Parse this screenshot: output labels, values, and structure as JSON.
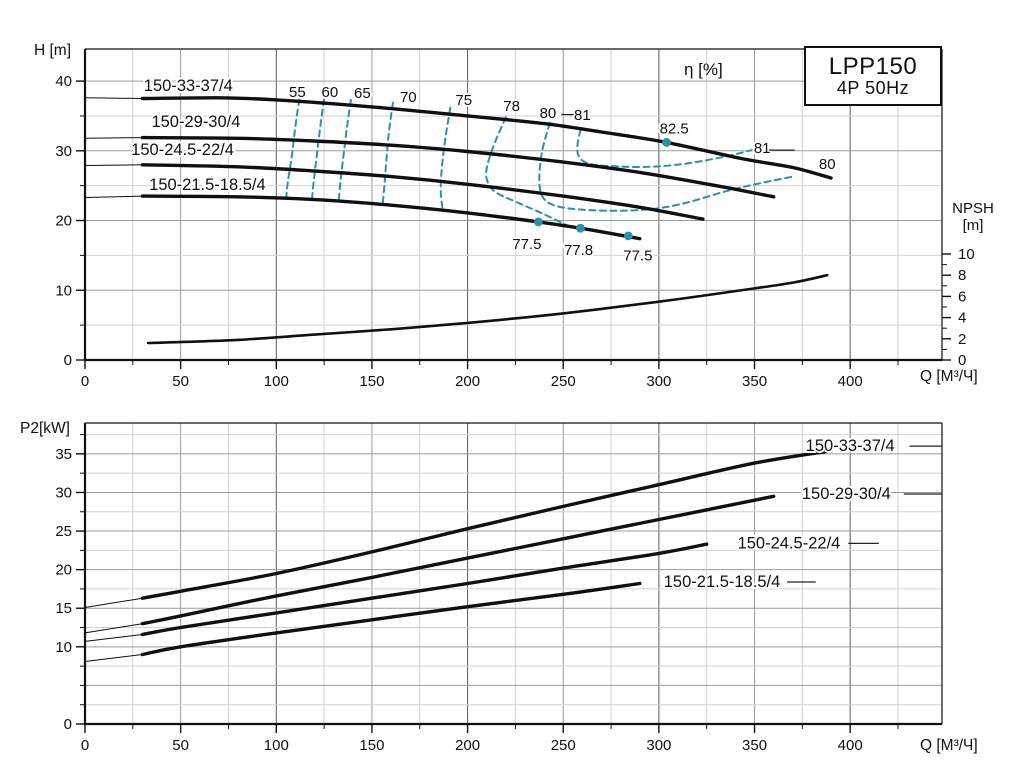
{
  "title_box": {
    "model": "LPP150",
    "spec": "4P 50Hz"
  },
  "colors": {
    "accent_teal": "#2a90ab",
    "curve_black": "#101010",
    "grid_minor": "#d2d2d2",
    "grid_mid": "#9b9b9b",
    "grid_major": "#5c5c5c",
    "axis": "#111111"
  },
  "chart_data": [
    {
      "type": "line",
      "title": "LPP150 4P 50Hz pump H-Q performance curves",
      "xlabel": "Q [M³/Ч]",
      "ylabel": "H [m]",
      "y2label_line1": "NPSH",
      "y2label_line2": "[m]",
      "eta_label": "η [%]",
      "xlim": [
        0,
        448
      ],
      "ylim": [
        0,
        44.6
      ],
      "y2lim": [
        0,
        10
      ],
      "grid": true,
      "x_axis": {
        "labeled_ticks": [
          0,
          50,
          100,
          150,
          200,
          250,
          300,
          350,
          400
        ],
        "minor_step": 25,
        "last_tick": 425
      },
      "y_axis": {
        "labeled_ticks": [
          0,
          10,
          20,
          30,
          40
        ],
        "minor_step": 5,
        "last_tick": 40
      },
      "npsh_axis": {
        "labeled_ticks": [
          0,
          2,
          4,
          6,
          8,
          10
        ],
        "minor_step": 1
      },
      "series": [
        {
          "name": "150-33-37/4",
          "label": "150-33-37/4",
          "label_pos": [
            54,
            39.3
          ],
          "thin_until": 30,
          "points": [
            [
              0,
              37.6
            ],
            [
              30,
              37.5
            ],
            [
              70,
              37.6
            ],
            [
              100,
              37.3
            ],
            [
              150,
              36.3
            ],
            [
              200,
              35.0
            ],
            [
              240,
              33.9
            ],
            [
              270,
              32.7
            ],
            [
              304,
              31.2
            ],
            [
              343,
              28.9
            ],
            [
              370,
              27.6
            ],
            [
              390,
              26.1
            ]
          ]
        },
        {
          "name": "150-29-30/4",
          "label": "150-29-30/4",
          "label_pos": [
            58,
            34.1
          ],
          "thin_until": 30,
          "points": [
            [
              0,
              31.8
            ],
            [
              30,
              31.9
            ],
            [
              80,
              31.8
            ],
            [
              120,
              31.4
            ],
            [
              160,
              30.8
            ],
            [
              200,
              29.9
            ],
            [
              250,
              28.4
            ],
            [
              290,
              26.9
            ],
            [
              330,
              25.0
            ],
            [
              360,
              23.4
            ]
          ]
        },
        {
          "name": "150-24.5-22/4",
          "label": "150-24.5-22/4",
          "label_pos": [
            51,
            30.1
          ],
          "thin_until": 30,
          "points": [
            [
              0,
              27.9
            ],
            [
              30,
              28.0
            ],
            [
              80,
              27.7
            ],
            [
              120,
              27.1
            ],
            [
              160,
              26.3
            ],
            [
              200,
              25.2
            ],
            [
              250,
              23.5
            ],
            [
              290,
              21.9
            ],
            [
              323,
              20.2
            ]
          ]
        },
        {
          "name": "150-21.5-18.5/4",
          "label": "150-21.5-18.5/4",
          "label_pos": [
            64,
            25.1
          ],
          "thin_until": 30,
          "points": [
            [
              0,
              23.3
            ],
            [
              30,
              23.5
            ],
            [
              80,
              23.4
            ],
            [
              120,
              23.0
            ],
            [
              160,
              22.2
            ],
            [
              200,
              21.1
            ],
            [
              237,
              19.8
            ],
            [
              259,
              18.9
            ],
            [
              290,
              17.4
            ]
          ]
        },
        {
          "name": "NPSH",
          "label": "",
          "yscale": "npsh",
          "width": 2.6,
          "thin_until": 0,
          "points": [
            [
              33,
              1.6
            ],
            [
              80,
              1.9
            ],
            [
              120,
              2.4
            ],
            [
              160,
              2.9
            ],
            [
              200,
              3.5
            ],
            [
              250,
              4.4
            ],
            [
              300,
              5.5
            ],
            [
              340,
              6.5
            ],
            [
              370,
              7.3
            ],
            [
              388,
              8.0
            ]
          ]
        }
      ],
      "efficiency_contours": [
        {
          "label": "55",
          "label_pos": [
            111,
            38.4
          ],
          "points": [
            [
              112,
              37.4
            ],
            [
              110,
              33.5
            ],
            [
              108,
              29.0
            ],
            [
              106,
              25.5
            ],
            [
              105,
              22.7
            ]
          ]
        },
        {
          "label": "60",
          "label_pos": [
            128,
            38.4
          ],
          "points": [
            [
              125,
              37.4
            ],
            [
              123,
              33.5
            ],
            [
              121,
              29.0
            ],
            [
              119.5,
              25.5
            ],
            [
              118.5,
              22.6
            ]
          ]
        },
        {
          "label": "65",
          "label_pos": [
            145,
            38.3
          ],
          "points": [
            [
              139,
              37.3
            ],
            [
              137,
              33.5
            ],
            [
              135,
              29.0
            ],
            [
              133.5,
              25.5
            ],
            [
              132.5,
              22.4
            ]
          ]
        },
        {
          "label": "70",
          "label_pos": [
            169,
            37.7
          ],
          "points": [
            [
              161,
              36.9
            ],
            [
              159,
              33.0
            ],
            [
              157.5,
              28.5
            ],
            [
              156.5,
              25.0
            ],
            [
              155.5,
              22.0
            ]
          ]
        },
        {
          "label": "75",
          "label_pos": [
            198,
            37.3
          ],
          "points": [
            [
              191,
              36.2
            ],
            [
              188.5,
              32.0
            ],
            [
              186.5,
              27.5
            ],
            [
              186,
              24.0
            ],
            [
              187,
              21.5
            ]
          ]
        },
        {
          "label": "78",
          "label_pos": [
            223,
            36.4
          ],
          "points": [
            [
              220,
              34.8
            ],
            [
              214,
              31.0
            ],
            [
              210,
              27.5
            ],
            [
              210.5,
              25.5
            ],
            [
              215,
              24.0
            ],
            [
              226,
              22.6
            ],
            [
              240,
              20.9
            ],
            [
              252,
              19.3
            ]
          ]
        },
        {
          "label": "80",
          "label_pos": [
            242,
            35.4
          ],
          "points": [
            [
              243,
              34.0
            ],
            [
              239,
              30.0
            ],
            [
              237.5,
              26.0
            ],
            [
              239,
              23.5
            ],
            [
              245,
              22.2
            ],
            [
              258,
              21.6
            ],
            [
              278,
              21.4
            ],
            [
              298,
              21.7
            ],
            [
              315,
              22.6
            ],
            [
              335,
              24.2
            ],
            [
              352,
              25.3
            ],
            [
              370,
              26.3
            ]
          ]
        },
        {
          "label": "81",
          "label_pos": [
            260,
            35.1
          ],
          "points": [
            [
              259,
              33.0
            ],
            [
              257.5,
              31.0
            ],
            [
              258,
              29.3
            ],
            [
              263,
              28.2
            ],
            [
              275,
              27.8
            ],
            [
              295,
              27.7
            ],
            [
              315,
              28.2
            ],
            [
              335,
              29.2
            ],
            [
              350,
              30.2
            ]
          ]
        },
        {
          "label": "81",
          "label_pos": [
            354,
            30.4
          ],
          "points": []
        },
        {
          "label": "80",
          "label_pos": [
            388,
            28.1
          ],
          "points": []
        }
      ],
      "bep_points": [
        {
          "value": "82.5",
          "q": 304,
          "y": 31.2,
          "label_pos": [
            308,
            33.2
          ]
        },
        {
          "value": "77.5",
          "q": 237,
          "y": 19.8,
          "label_pos": [
            231,
            16.6
          ]
        },
        {
          "value": "77.8",
          "q": 259,
          "y": 18.9,
          "label_pos": [
            258,
            15.8
          ]
        },
        {
          "value": "77.5",
          "q": 284,
          "y": 17.8,
          "label_pos": [
            289,
            15.0
          ]
        }
      ],
      "leader_lines": [
        {
          "points": [
            [
              357.5,
              30.1
            ],
            [
              371,
              30.1
            ]
          ]
        },
        {
          "points": [
            [
              249,
              35.2
            ],
            [
              255.5,
              35.2
            ]
          ]
        }
      ]
    },
    {
      "type": "line",
      "title": "LPP150 4P 50Hz shaft power P2-Q curves",
      "xlabel": "Q [M³/Ч]",
      "ylabel": "P2[kW]",
      "xlim": [
        0,
        448
      ],
      "ylim": [
        0,
        39
      ],
      "grid": true,
      "x_axis": {
        "labeled_ticks": [
          0,
          50,
          100,
          150,
          200,
          250,
          300,
          350,
          400
        ],
        "minor_step": 25,
        "last_tick": 425
      },
      "y_axis": {
        "labeled_ticks": [
          0,
          10,
          15,
          20,
          25,
          30,
          35
        ],
        "minor_step": 2.5,
        "last_tick": 37.5
      },
      "series": [
        {
          "name": "150-33-37/4",
          "label": "150-33-37/4",
          "label_pos": [
            400,
            36.0
          ],
          "thin_until": 30,
          "label_trail": [
            [
              431,
              36.0
            ],
            [
              448,
              36.0
            ]
          ],
          "points": [
            [
              0,
              15.1
            ],
            [
              30,
              16.3
            ],
            [
              50,
              17.2
            ],
            [
              100,
              19.5
            ],
            [
              150,
              22.3
            ],
            [
              200,
              25.3
            ],
            [
              250,
              28.2
            ],
            [
              300,
              31.0
            ],
            [
              350,
              33.8
            ],
            [
              390,
              35.4
            ]
          ]
        },
        {
          "name": "150-29-30/4",
          "label": "150-29-30/4",
          "label_pos": [
            398,
            29.8
          ],
          "thin_until": 30,
          "label_trail": [
            [
              428,
              29.8
            ],
            [
              448,
              29.8
            ]
          ],
          "points": [
            [
              0,
              11.8
            ],
            [
              30,
              13.0
            ],
            [
              50,
              14.0
            ],
            [
              100,
              16.6
            ],
            [
              150,
              19.0
            ],
            [
              200,
              21.5
            ],
            [
              250,
              24.0
            ],
            [
              300,
              26.5
            ],
            [
              360,
              29.5
            ]
          ]
        },
        {
          "name": "150-24.5-22/4",
          "label": "150-24.5-22/4",
          "label_pos": [
            368,
            23.4
          ],
          "thin_until": 30,
          "label_trail": [
            [
              399,
              23.4
            ],
            [
              415,
              23.4
            ]
          ],
          "points": [
            [
              0,
              10.7
            ],
            [
              30,
              11.6
            ],
            [
              50,
              12.5
            ],
            [
              100,
              14.4
            ],
            [
              150,
              16.3
            ],
            [
              200,
              18.2
            ],
            [
              250,
              20.2
            ],
            [
              300,
              22.1
            ],
            [
              325,
              23.3
            ]
          ]
        },
        {
          "name": "150-21.5-18.5/4",
          "label": "150-21.5-18.5/4",
          "label_pos": [
            333,
            18.4
          ],
          "thin_until": 30,
          "label_trail": [
            [
              367,
              18.4
            ],
            [
              382,
              18.4
            ]
          ],
          "points": [
            [
              0,
              8.1
            ],
            [
              30,
              9.0
            ],
            [
              50,
              10.0
            ],
            [
              100,
              11.8
            ],
            [
              150,
              13.5
            ],
            [
              200,
              15.2
            ],
            [
              250,
              16.8
            ],
            [
              290,
              18.2
            ]
          ]
        }
      ]
    }
  ]
}
